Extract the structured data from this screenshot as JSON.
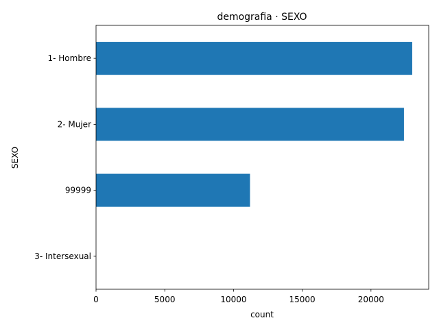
{
  "chart_data": {
    "type": "bar",
    "orientation": "horizontal",
    "title": "demografia · SEXO",
    "xlabel": "count",
    "ylabel": "SEXO",
    "categories": [
      "1- Hombre",
      "2- Mujer",
      "99999",
      "3- Intersexual"
    ],
    "values": [
      23000,
      22400,
      11200,
      0
    ],
    "xlim": [
      0,
      24200
    ],
    "xticks": [
      0,
      5000,
      10000,
      15000,
      20000
    ],
    "grid": false,
    "legend": "none",
    "bar_color": "#1f77b4"
  }
}
